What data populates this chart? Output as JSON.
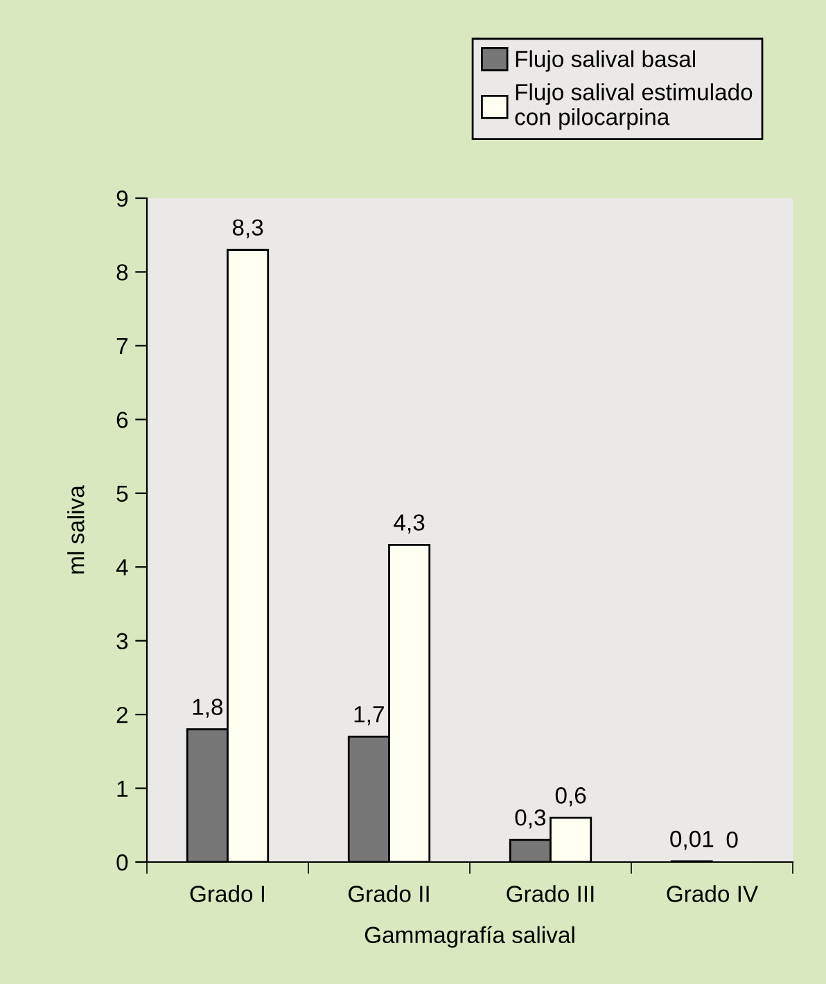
{
  "chart_data": {
    "type": "bar",
    "xlabel": "Gammagrafía salival",
    "ylabel": "ml saliva",
    "categories": [
      "Grado I",
      "Grado II",
      "Grado III",
      "Grado IV"
    ],
    "series": [
      {
        "name": "Flujo salival basal",
        "color": "#777777",
        "values": [
          1.8,
          1.7,
          0.3,
          0.01
        ],
        "value_labels": [
          "1,8",
          "1,7",
          "0,3",
          "0,01"
        ]
      },
      {
        "name": "Flujo salival estimulado\ncon pilocarpina",
        "color": "#fffff2",
        "values": [
          8.3,
          4.3,
          0.6,
          0
        ],
        "value_labels": [
          "8,3",
          "4,3",
          "0,6",
          "0"
        ]
      }
    ],
    "ylim": [
      0,
      9
    ],
    "yticks": [
      0,
      1,
      2,
      3,
      4,
      5,
      6,
      7,
      8,
      9
    ],
    "grid": false,
    "legend": "top right"
  }
}
